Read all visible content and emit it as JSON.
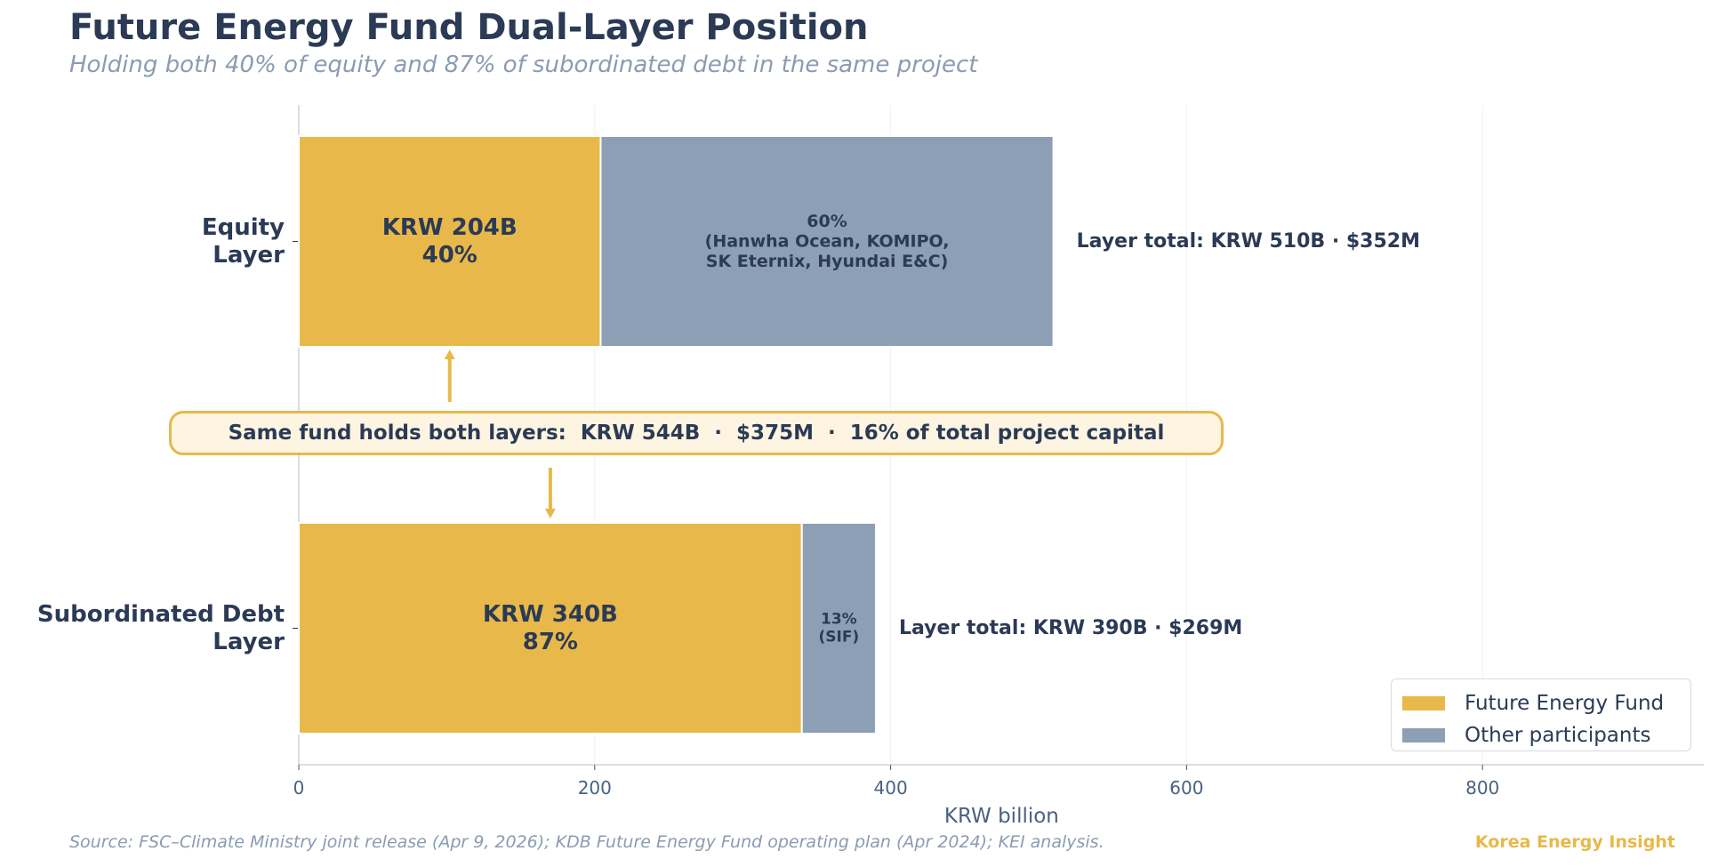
{
  "header": {
    "title": "Future Energy Fund Dual-Layer Position",
    "subtitle": "Holding both 40% of equity and 87% of subordinated debt in the same project"
  },
  "footer": {
    "source": "Source: FSC–Climate Ministry joint release (Apr 9, 2026); KDB Future Energy Fund operating plan (Apr 2024); KEI analysis.",
    "brand": "Korea Energy Insight"
  },
  "callout": {
    "text": "Same fund holds both layers:  KRW 544B  ·  $375M  ·  16% of total project capital"
  },
  "legend": {
    "items": [
      {
        "label": "Future Energy Fund",
        "color": "#e8b84a"
      },
      {
        "label": "Other participants",
        "color": "#8d9fb5"
      }
    ]
  },
  "chart_data": {
    "type": "bar",
    "orientation": "horizontal",
    "stacked": true,
    "xlabel": "KRW billion",
    "xlim": [
      0,
      950
    ],
    "xticks": [
      0,
      200,
      400,
      600,
      800
    ],
    "grid": "vertical",
    "categories": [
      {
        "label_lines": [
          "Equity",
          "Layer"
        ]
      },
      {
        "label_lines": [
          "Subordinated Debt",
          "Layer"
        ]
      }
    ],
    "series": [
      {
        "name": "Future Energy Fund",
        "color": "#e8b84a",
        "values": [
          204,
          340
        ],
        "labels": [
          [
            "KRW 204B",
            "40%"
          ],
          [
            "KRW 340B",
            "87%"
          ]
        ]
      },
      {
        "name": "Other participants",
        "color": "#8d9fb5",
        "values": [
          306,
          50
        ],
        "labels": [
          [
            "60%",
            "(Hanwha Ocean, KOMIPO,",
            "SK Eternix, Hyundai E&C)"
          ],
          [
            "13%",
            "(SIF)"
          ]
        ]
      }
    ],
    "totals": [
      "Layer total: KRW 510B · $352M",
      "Layer total: KRW 390B · $269M"
    ]
  }
}
